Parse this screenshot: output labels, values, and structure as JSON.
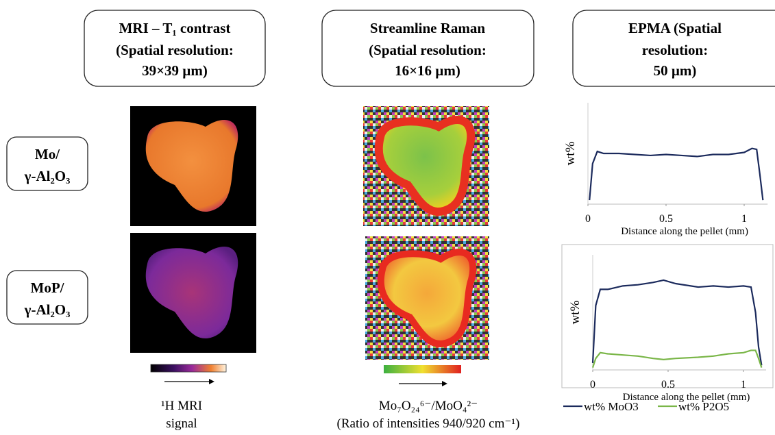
{
  "headers": [
    {
      "lines": [
        "MRI – T₁ contrast",
        "(Spatial resolution:",
        "39×39 µm)"
      ]
    },
    {
      "lines": [
        "Streamline Raman",
        "(Spatial resolution:",
        "16×16 µm)"
      ]
    },
    {
      "lines": [
        "EPMA (Spatial",
        "resolution:",
        "50 µm)"
      ]
    }
  ],
  "row_labels": [
    {
      "lines": [
        "Mo/",
        "γ-Al₂O₃"
      ]
    },
    {
      "lines": [
        "MoP/",
        "γ-Al₂O₃"
      ]
    }
  ],
  "colorbar_labels": [
    {
      "lines": [
        "¹H MRI",
        "signal"
      ]
    },
    {
      "lines": [
        "Mo₇O₂₄⁶⁻/MoO₄²⁻",
        "(Ratio of intensities 940/920 cm⁻¹)"
      ]
    }
  ],
  "chart_data": [
    {
      "type": "line",
      "x_label": "Distance along the pellet (mm)",
      "y_label": "wt%",
      "xlim": [
        0,
        1.15
      ],
      "xticks": [
        0,
        0.5,
        1
      ],
      "ylim": [
        0,
        5
      ],
      "x": [
        0.01,
        0.03,
        0.06,
        0.1,
        0.2,
        0.3,
        0.4,
        0.5,
        0.6,
        0.7,
        0.8,
        0.9,
        1.0,
        1.05,
        1.08,
        1.1,
        1.12
      ],
      "series": [
        {
          "color": "#1b2a5c",
          "values": [
            0.2,
            2.0,
            2.6,
            2.5,
            2.5,
            2.45,
            2.4,
            2.45,
            2.4,
            2.35,
            2.45,
            2.45,
            2.55,
            2.75,
            2.7,
            1.5,
            0.2
          ]
        }
      ]
    },
    {
      "type": "line",
      "x_label": "Distance along the pellet (mm)",
      "y_label": "wt%",
      "xlim": [
        0,
        1.15
      ],
      "xticks": [
        0,
        0.5,
        1
      ],
      "ylim": [
        0,
        5
      ],
      "x": [
        0.0,
        0.02,
        0.05,
        0.1,
        0.2,
        0.3,
        0.4,
        0.47,
        0.55,
        0.7,
        0.8,
        0.9,
        1.0,
        1.05,
        1.08,
        1.1,
        1.12
      ],
      "series": [
        {
          "name": "wt% MoO3",
          "color": "#1b2a5c",
          "values": [
            0.3,
            2.8,
            3.5,
            3.5,
            3.65,
            3.7,
            3.8,
            3.9,
            3.75,
            3.6,
            3.65,
            3.6,
            3.65,
            3.6,
            2.5,
            1.0,
            0.2
          ]
        },
        {
          "name": "wt% P2O5",
          "color": "#7ab648",
          "values": [
            0.1,
            0.5,
            0.75,
            0.7,
            0.65,
            0.6,
            0.5,
            0.45,
            0.5,
            0.55,
            0.6,
            0.7,
            0.75,
            0.85,
            0.85,
            0.5,
            0.1
          ]
        }
      ]
    }
  ]
}
